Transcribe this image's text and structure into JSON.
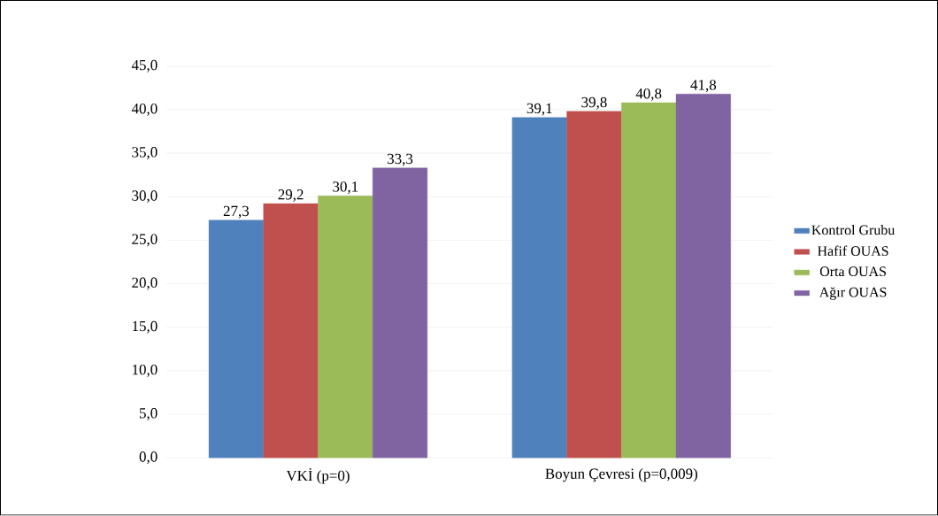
{
  "chart_data": {
    "type": "bar",
    "categories": [
      "VKİ (p=0)",
      "Boyun Çevresi (p=0,009)"
    ],
    "series": [
      {
        "name": "Kontrol Grubu",
        "color": "#4f81bd",
        "values": [
          27.3,
          39.1
        ],
        "value_labels": [
          "27,3",
          "39,1"
        ]
      },
      {
        "name": "Hafif OUAS",
        "color": "#c0504d",
        "values": [
          29.2,
          39.8
        ],
        "value_labels": [
          "29,2",
          "39,8"
        ]
      },
      {
        "name": "Orta OUAS",
        "color": "#9bbb59",
        "values": [
          30.1,
          40.8
        ],
        "value_labels": [
          "30,1",
          "40,8"
        ]
      },
      {
        "name": "Ağır OUAS",
        "color": "#8064a2",
        "values": [
          33.3,
          41.8
        ],
        "value_labels": [
          "33,3",
          "41,8"
        ]
      }
    ],
    "ylim": [
      0,
      45
    ],
    "yticks": [
      {
        "value": 0,
        "label": "0,0"
      },
      {
        "value": 5,
        "label": "5,0"
      },
      {
        "value": 10,
        "label": "10,0"
      },
      {
        "value": 15,
        "label": "15,0"
      },
      {
        "value": 20,
        "label": "20,0"
      },
      {
        "value": 25,
        "label": "25,0"
      },
      {
        "value": 30,
        "label": "30,0"
      },
      {
        "value": 35,
        "label": "35,0"
      },
      {
        "value": 40,
        "label": "40,0"
      },
      {
        "value": 45,
        "label": "45,0"
      }
    ],
    "grid": "y",
    "legend": "right"
  }
}
